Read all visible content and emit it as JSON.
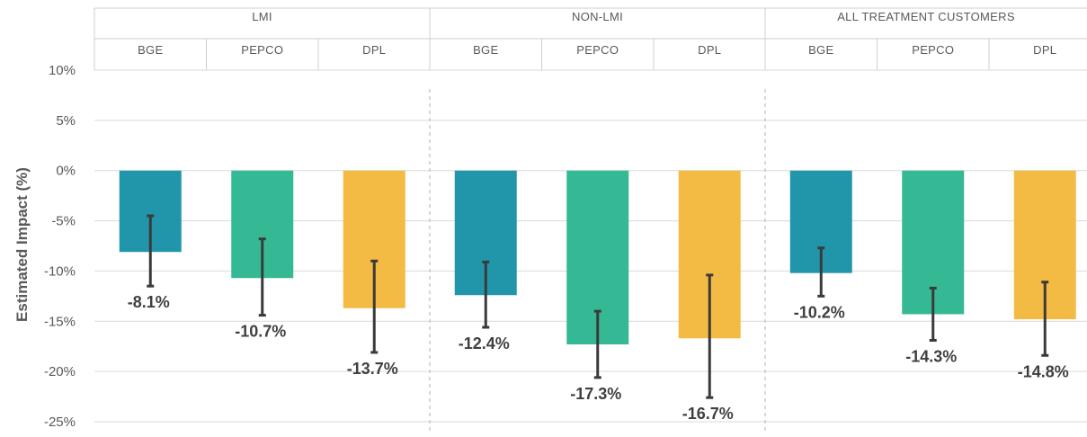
{
  "chart_data": {
    "type": "bar",
    "title": "",
    "xlabel": "",
    "ylabel": "Estimated Impact (%)",
    "ylim": [
      -25,
      10
    ],
    "yticks": [
      10,
      5,
      0,
      -5,
      -10,
      -15,
      -20,
      -25
    ],
    "ytick_labels": [
      "10%",
      "5%",
      "0%",
      "-5%",
      "-10%",
      "-15%",
      "-20%",
      "-25%"
    ],
    "grid": true,
    "legend": "none",
    "colors": {
      "BGE": "#2196aa",
      "PEPCO": "#35b994",
      "DPL": "#f4bb44"
    },
    "groups": [
      {
        "name": "LMI",
        "bars": [
          {
            "category": "BGE",
            "value": -8.1,
            "error_low": -11.5,
            "error_high": -4.5,
            "label": "-8.1%"
          },
          {
            "category": "PEPCO",
            "value": -10.7,
            "error_low": -14.4,
            "error_high": -6.8,
            "label": "-10.7%"
          },
          {
            "category": "DPL",
            "value": -13.7,
            "error_low": -18.1,
            "error_high": -9.0,
            "label": "-13.7%"
          }
        ]
      },
      {
        "name": "NON-LMI",
        "bars": [
          {
            "category": "BGE",
            "value": -12.4,
            "error_low": -15.6,
            "error_high": -9.1,
            "label": "-12.4%"
          },
          {
            "category": "PEPCO",
            "value": -17.3,
            "error_low": -20.6,
            "error_high": -14.0,
            "label": "-17.3%"
          },
          {
            "category": "DPL",
            "value": -16.7,
            "error_low": -22.6,
            "error_high": -10.4,
            "label": "-16.7%"
          }
        ]
      },
      {
        "name": "ALL TREATMENT CUSTOMERS",
        "bars": [
          {
            "category": "BGE",
            "value": -10.2,
            "error_low": -12.5,
            "error_high": -7.7,
            "label": "-10.2%"
          },
          {
            "category": "PEPCO",
            "value": -14.3,
            "error_low": -16.9,
            "error_high": -11.7,
            "label": "-14.3%"
          },
          {
            "category": "DPL",
            "value": -14.8,
            "error_low": -18.4,
            "error_high": -11.1,
            "label": "-14.8%"
          }
        ]
      }
    ]
  }
}
